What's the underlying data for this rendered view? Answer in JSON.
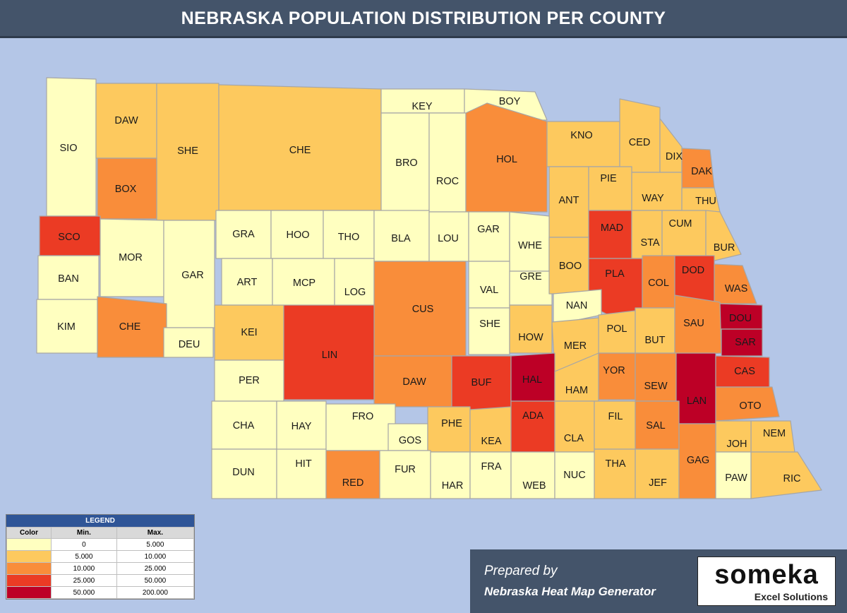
{
  "title": "NEBRASKA POPULATION DISTRIBUTION PER COUNTY",
  "colors": {
    "c0": "#ffffc0",
    "c1": "#fdc95e",
    "c2": "#f98d3a",
    "c3": "#eb3b24",
    "c4": "#bd0026",
    "background": "#b4c6e7",
    "border": "#a6a6a6"
  },
  "legend": {
    "title": "LEGEND",
    "headers": [
      "Color",
      "Min.",
      "Max."
    ],
    "rows": [
      {
        "min": "0",
        "max": "5.000",
        "color": "#ffffc0"
      },
      {
        "min": "5.000",
        "max": "10.000",
        "color": "#fdc95e"
      },
      {
        "min": "10.000",
        "max": "25.000",
        "color": "#f98d3a"
      },
      {
        "min": "25.000",
        "max": "50.000",
        "color": "#eb3b24"
      },
      {
        "min": "50.000",
        "max": "200.000",
        "color": "#bd0026"
      }
    ]
  },
  "counties": [
    {
      "code": "SIO",
      "cls": 0
    },
    {
      "code": "DAW",
      "cls": 1
    },
    {
      "code": "SHE",
      "cls": 1
    },
    {
      "code": "CHE",
      "cls": 1
    },
    {
      "code": "KEY",
      "cls": 0
    },
    {
      "code": "BOY",
      "cls": 0
    },
    {
      "code": "BRO",
      "cls": 0
    },
    {
      "code": "ROC",
      "cls": 0
    },
    {
      "code": "HOL",
      "cls": 2
    },
    {
      "code": "KNO",
      "cls": 1
    },
    {
      "code": "CED",
      "cls": 1
    },
    {
      "code": "DIX",
      "cls": 1
    },
    {
      "code": "DAK",
      "cls": 2
    },
    {
      "code": "BOX",
      "cls": 2
    },
    {
      "code": "ANT",
      "cls": 1
    },
    {
      "code": "PIE",
      "cls": 1
    },
    {
      "code": "WAY",
      "cls": 1
    },
    {
      "code": "THU",
      "cls": 1
    },
    {
      "code": "SCO",
      "cls": 3
    },
    {
      "code": "MOR",
      "cls": 0
    },
    {
      "code": "GRA",
      "cls": 0
    },
    {
      "code": "HOO",
      "cls": 0
    },
    {
      "code": "THO",
      "cls": 0
    },
    {
      "code": "BLA",
      "cls": 0
    },
    {
      "code": "LOU",
      "cls": 0
    },
    {
      "code": "GAR",
      "cls": 0
    },
    {
      "code": "WHE",
      "cls": 0
    },
    {
      "code": "MAD",
      "cls": 3
    },
    {
      "code": "STA",
      "cls": 1
    },
    {
      "code": "CUM",
      "cls": 1
    },
    {
      "code": "BUR",
      "cls": 1
    },
    {
      "code": "BAN",
      "cls": 0
    },
    {
      "code": "GAR",
      "cls": 0
    },
    {
      "code": "ART",
      "cls": 0
    },
    {
      "code": "MCP",
      "cls": 0
    },
    {
      "code": "LOG",
      "cls": 0
    },
    {
      "code": "CUS",
      "cls": 2
    },
    {
      "code": "VAL",
      "cls": 0
    },
    {
      "code": "GRE",
      "cls": 0
    },
    {
      "code": "BOO",
      "cls": 1
    },
    {
      "code": "PLA",
      "cls": 3
    },
    {
      "code": "COL",
      "cls": 2
    },
    {
      "code": "DOD",
      "cls": 3
    },
    {
      "code": "WAS",
      "cls": 2
    },
    {
      "code": "KIM",
      "cls": 0
    },
    {
      "code": "CHE",
      "cls": 2
    },
    {
      "code": "DEU",
      "cls": 0
    },
    {
      "code": "KEI",
      "cls": 1
    },
    {
      "code": "NAN",
      "cls": 0
    },
    {
      "code": "DOU",
      "cls": 4
    },
    {
      "code": "SHE",
      "cls": 0
    },
    {
      "code": "HOW",
      "cls": 1
    },
    {
      "code": "MER",
      "cls": 1
    },
    {
      "code": "POL",
      "cls": 1
    },
    {
      "code": "BUT",
      "cls": 1
    },
    {
      "code": "SAU",
      "cls": 2
    },
    {
      "code": "SAR",
      "cls": 4
    },
    {
      "code": "LIN",
      "cls": 3
    },
    {
      "code": "PER",
      "cls": 0
    },
    {
      "code": "DAW",
      "cls": 2
    },
    {
      "code": "BUF",
      "cls": 3
    },
    {
      "code": "HAL",
      "cls": 4
    },
    {
      "code": "HAM",
      "cls": 1
    },
    {
      "code": "YOR",
      "cls": 2
    },
    {
      "code": "SEW",
      "cls": 2
    },
    {
      "code": "LAN",
      "cls": 4
    },
    {
      "code": "CAS",
      "cls": 3
    },
    {
      "code": "CHA",
      "cls": 0
    },
    {
      "code": "HAY",
      "cls": 0
    },
    {
      "code": "FRO",
      "cls": 0
    },
    {
      "code": "GOS",
      "cls": 0
    },
    {
      "code": "PHE",
      "cls": 1
    },
    {
      "code": "KEA",
      "cls": 1
    },
    {
      "code": "ADA",
      "cls": 3
    },
    {
      "code": "CLA",
      "cls": 1
    },
    {
      "code": "FIL",
      "cls": 1
    },
    {
      "code": "SAL",
      "cls": 2
    },
    {
      "code": "OTO",
      "cls": 2
    },
    {
      "code": "NEM",
      "cls": 1
    },
    {
      "code": "JOH",
      "cls": 1
    },
    {
      "code": "DUN",
      "cls": 0
    },
    {
      "code": "HIT",
      "cls": 0
    },
    {
      "code": "RED",
      "cls": 2
    },
    {
      "code": "FUR",
      "cls": 0
    },
    {
      "code": "HAR",
      "cls": 0
    },
    {
      "code": "FRA",
      "cls": 0
    },
    {
      "code": "WEB",
      "cls": 0
    },
    {
      "code": "NUC",
      "cls": 0
    },
    {
      "code": "THA",
      "cls": 1
    },
    {
      "code": "JEF",
      "cls": 1
    },
    {
      "code": "GAG",
      "cls": 2
    },
    {
      "code": "PAW",
      "cls": 0
    },
    {
      "code": "RIC",
      "cls": 1
    }
  ],
  "branding": {
    "prepared": "Prepared by",
    "generator": "Nebraska Heat Map Generator",
    "logo": "someka",
    "logo_sub": "Excel Solutions"
  }
}
